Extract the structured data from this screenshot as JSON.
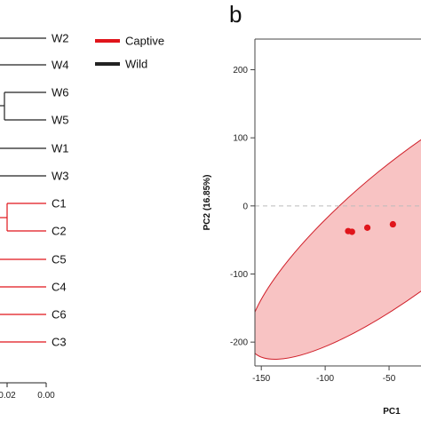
{
  "panel_letter": "b",
  "legend": [
    {
      "label": "Captive",
      "color": "#e0151b"
    },
    {
      "label": "Wild",
      "color": "#222222"
    }
  ],
  "chart_data": [
    {
      "type": "dendrogram",
      "leaves": [
        {
          "label": "W2",
          "group": "Wild"
        },
        {
          "label": "W4",
          "group": "Wild"
        },
        {
          "label": "W6",
          "group": "Wild"
        },
        {
          "label": "W5",
          "group": "Wild"
        },
        {
          "label": "W1",
          "group": "Wild"
        },
        {
          "label": "W3",
          "group": "Wild"
        },
        {
          "label": "C1",
          "group": "Captive"
        },
        {
          "label": "C2",
          "group": "Captive"
        },
        {
          "label": "C5",
          "group": "Captive"
        },
        {
          "label": "C4",
          "group": "Captive"
        },
        {
          "label": "C6",
          "group": "Captive"
        },
        {
          "label": "C3",
          "group": "Captive"
        }
      ],
      "x_ticks": [
        "0.02",
        "0.00"
      ],
      "colors": {
        "Wild": "#222222",
        "Captive": "#e0151b"
      }
    },
    {
      "type": "scatter",
      "xlabel": "PC1",
      "ylabel": "PC2 (16.85%)",
      "xlim": [
        -155,
        -25
      ],
      "ylim": [
        -235,
        245
      ],
      "x_ticks": [
        -150,
        -100,
        -50
      ],
      "y_ticks": [
        200,
        100,
        0,
        -100,
        -200
      ],
      "zero_line": true,
      "series": [
        {
          "name": "Captive",
          "color": "#e0151b",
          "points": [
            [
              -82,
              -37
            ],
            [
              -79,
              -38
            ],
            [
              -67,
              -32
            ],
            [
              -47,
              -27
            ]
          ]
        }
      ],
      "ellipse": {
        "group": "Captive",
        "fill": "#f7b8b8",
        "stroke": "#d0202a",
        "center": [
          -28,
          -18
        ],
        "semi_axes": [
          238,
          68
        ],
        "angle_deg": 39
      }
    }
  ]
}
